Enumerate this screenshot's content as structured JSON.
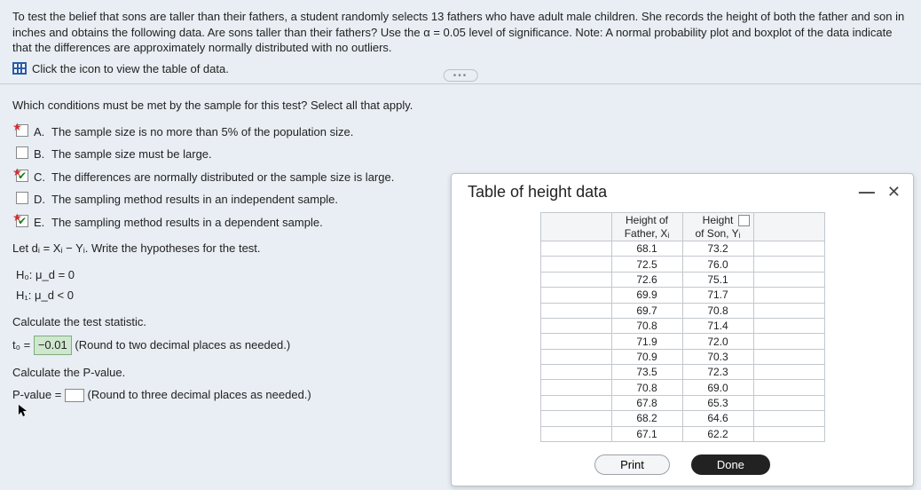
{
  "header": {
    "prompt": "To test the belief that sons are taller than their fathers, a student randomly selects 13 fathers who have adult male children. She records the height of both the father and son in inches and obtains the following data. Are sons taller than their fathers? Use the α = 0.05 level of significance. Note: A normal probability plot and boxplot of the data indicate that the differences are approximately normally distributed with no outliers.",
    "click_label": "Click the icon to view the table of data."
  },
  "conditions": {
    "question": "Which conditions must be met by the sample for this test? Select all that apply.",
    "options": [
      {
        "letter": "A.",
        "text": "The sample size is no more than 5% of the population size.",
        "checked": false,
        "starred": true
      },
      {
        "letter": "B.",
        "text": "The sample size must be large.",
        "checked": false,
        "starred": false
      },
      {
        "letter": "C.",
        "text": "The differences are normally distributed or the sample size is large.",
        "checked": true,
        "starred": true
      },
      {
        "letter": "D.",
        "text": "The sampling method results in an independent sample.",
        "checked": false,
        "starred": false
      },
      {
        "letter": "E.",
        "text": "The sampling method results in a dependent sample.",
        "checked": true,
        "starred": true
      }
    ]
  },
  "hypotheses": {
    "let_d": "Let dᵢ = Xᵢ − Yᵢ. Write the hypotheses for the test.",
    "h0": "H₀:  μ_d = 0",
    "h1": "H₁:  μ_d < 0"
  },
  "test_statistic": {
    "label": "Calculate the test statistic.",
    "prefix": "t₀ =",
    "value": "−0.01",
    "note": "(Round to two decimal places as needed.)"
  },
  "pvalue": {
    "label": "Calculate the P-value.",
    "prefix": "P-value =",
    "note": "(Round to three decimal places as needed.)"
  },
  "modal": {
    "title": "Table of height data",
    "col1_l1": "Height of",
    "col1_l2": "Father, Xᵢ",
    "col2_l1": "Height",
    "col2_l2": "of Son, Yᵢ",
    "rows": [
      [
        "68.1",
        "73.2"
      ],
      [
        "72.5",
        "76.0"
      ],
      [
        "72.6",
        "75.1"
      ],
      [
        "69.9",
        "71.7"
      ],
      [
        "69.7",
        "70.8"
      ],
      [
        "70.8",
        "71.4"
      ],
      [
        "71.9",
        "72.0"
      ],
      [
        "70.9",
        "70.3"
      ],
      [
        "73.5",
        "72.3"
      ],
      [
        "70.8",
        "69.0"
      ],
      [
        "67.8",
        "65.3"
      ],
      [
        "68.2",
        "64.6"
      ],
      [
        "67.1",
        "62.2"
      ]
    ],
    "print": "Print",
    "done": "Done"
  }
}
